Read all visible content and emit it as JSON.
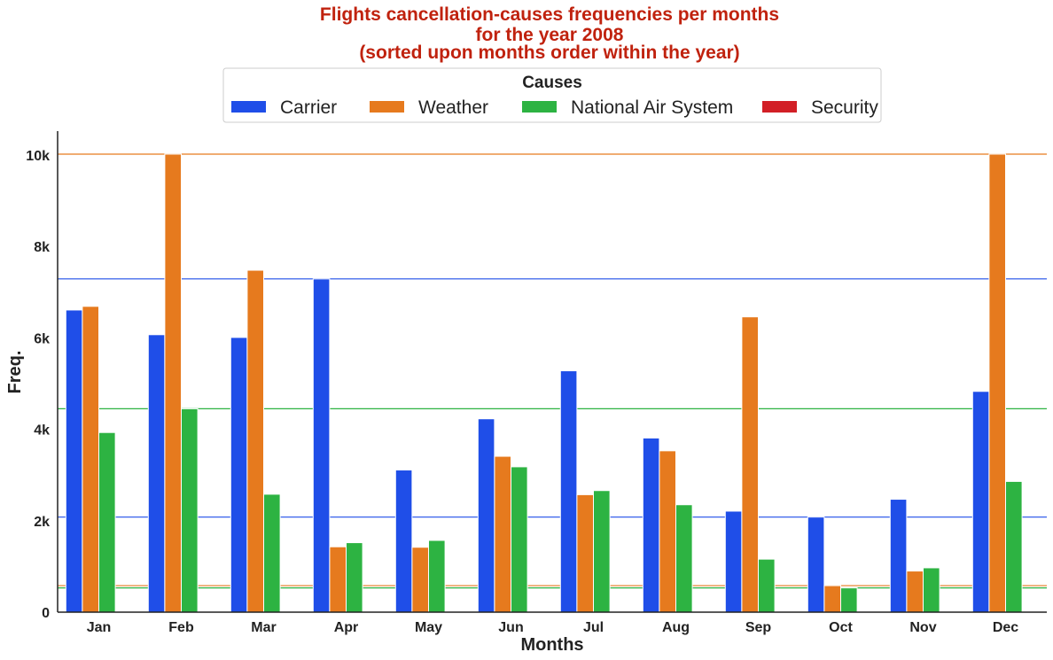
{
  "chart_data": {
    "type": "bar",
    "title": [
      "Flights cancellation-causes frequencies per months",
      "for the year 2008",
      "(sorted upon months order within the year)"
    ],
    "xlabel": "Months",
    "ylabel": "Freq.",
    "categories": [
      "Jan",
      "Feb",
      "Mar",
      "Apr",
      "May",
      "Jun",
      "Jul",
      "Aug",
      "Sep",
      "Oct",
      "Nov",
      "Dec"
    ],
    "ylim": [
      0,
      10500
    ],
    "yticks": [
      0,
      2000,
      4000,
      6000,
      8000,
      10000
    ],
    "ytick_labels": [
      "0",
      "2k",
      "4k",
      "6k",
      "8k",
      "10k"
    ],
    "legend": {
      "title": "Causes",
      "placement": "top-center",
      "columns": 4
    },
    "series": [
      {
        "name": "Carrier",
        "color": "#1f4ee8",
        "values": [
          6610,
          6070,
          6010,
          7290,
          3110,
          4230,
          5280,
          3810,
          2210,
          2080,
          2470,
          4830
        ]
      },
      {
        "name": "Weather",
        "color": "#e67a1e",
        "values": [
          6690,
          10020,
          7480,
          1430,
          1420,
          3410,
          2570,
          3530,
          6460,
          580,
          900,
          10020
        ]
      },
      {
        "name": "National Air System",
        "color": "#2db342",
        "values": [
          3930,
          4450,
          2580,
          1520,
          1570,
          3180,
          2660,
          2350,
          1160,
          530,
          970,
          2860
        ]
      },
      {
        "name": "Security",
        "color": "#d21f26",
        "values": [
          0,
          0,
          0,
          0,
          0,
          0,
          0,
          0,
          0,
          0,
          0,
          0
        ]
      }
    ],
    "reference_lines": [
      {
        "value": 10020,
        "color": "#e67a1e"
      },
      {
        "value": 7290,
        "color": "#1f4ee8"
      },
      {
        "value": 4450,
        "color": "#2db342"
      },
      {
        "value": 2080,
        "color": "#1f4ee8"
      },
      {
        "value": 580,
        "color": "#e67a1e"
      },
      {
        "value": 530,
        "color": "#2db342"
      }
    ],
    "grid": false
  }
}
